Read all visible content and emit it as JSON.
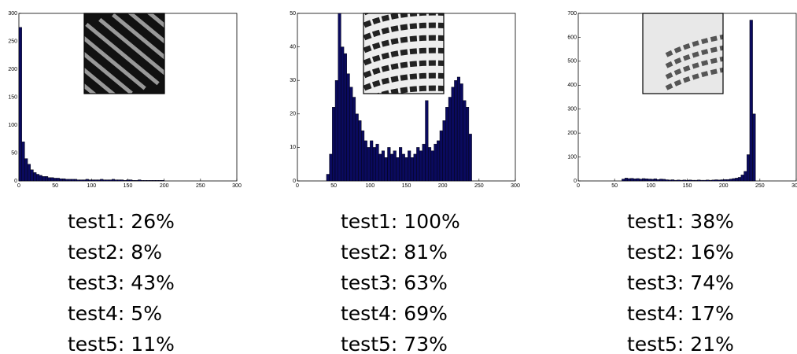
{
  "chart_data": [
    {
      "type": "histogram",
      "color": "#0a0a5e",
      "xlim": [
        0,
        300
      ],
      "ylim": [
        0,
        300
      ],
      "xticks": [
        0,
        50,
        100,
        150,
        200,
        250,
        300
      ],
      "yticks": [
        0,
        50,
        100,
        150,
        200,
        250,
        300
      ],
      "bins": [
        0,
        4,
        8,
        12,
        16,
        20,
        24,
        28,
        32,
        36,
        40,
        44,
        48,
        52,
        56,
        60,
        64,
        68,
        72,
        76,
        80,
        84,
        88,
        92,
        96,
        100,
        104,
        108,
        112,
        116,
        120,
        124,
        128,
        132,
        136,
        140,
        144,
        148,
        152,
        156,
        160,
        164,
        168,
        172,
        176,
        180,
        184,
        188,
        192,
        196,
        200
      ],
      "values": [
        275,
        70,
        40,
        30,
        20,
        15,
        12,
        10,
        8,
        8,
        6,
        6,
        5,
        5,
        4,
        4,
        3,
        3,
        3,
        3,
        2,
        2,
        2,
        3,
        2,
        2,
        2,
        2,
        3,
        2,
        2,
        2,
        3,
        2,
        2,
        2,
        1,
        2,
        2,
        1,
        1,
        2,
        1,
        1,
        1,
        1,
        1,
        1,
        1,
        1
      ],
      "annotations": [
        "test1: 26%",
        "test2: 8%",
        "test3: 43%",
        "test4: 5%",
        "test5: 11%"
      ]
    },
    {
      "type": "histogram",
      "color": "#0a0a5e",
      "xlim": [
        0,
        300
      ],
      "ylim": [
        0,
        50
      ],
      "xticks": [
        0,
        50,
        100,
        150,
        200,
        250,
        300
      ],
      "yticks": [
        0,
        10,
        20,
        30,
        40,
        50
      ],
      "bins": [
        40,
        44,
        48,
        52,
        56,
        60,
        64,
        68,
        72,
        76,
        80,
        84,
        88,
        92,
        96,
        100,
        104,
        108,
        112,
        116,
        120,
        124,
        128,
        132,
        136,
        140,
        144,
        148,
        152,
        156,
        160,
        164,
        168,
        172,
        176,
        180,
        184,
        188,
        192,
        196,
        200,
        204,
        208,
        212,
        216,
        220,
        224,
        228,
        232,
        236,
        240
      ],
      "values": [
        2,
        8,
        22,
        30,
        50,
        40,
        38,
        32,
        28,
        25,
        20,
        18,
        15,
        12,
        10,
        12,
        10,
        11,
        8,
        9,
        7,
        10,
        8,
        9,
        7,
        10,
        8,
        7,
        9,
        7,
        8,
        10,
        9,
        11,
        24,
        10,
        9,
        11,
        12,
        15,
        18,
        22,
        25,
        28,
        30,
        31,
        29,
        24,
        22,
        14
      ],
      "annotations": [
        "test1: 100%",
        "test2: 81%",
        "test3: 63%",
        "test4: 69%",
        "test5: 73%"
      ]
    },
    {
      "type": "histogram",
      "color": "#0a0a5e",
      "xlim": [
        0,
        300
      ],
      "ylim": [
        0,
        700
      ],
      "xticks": [
        0,
        50,
        100,
        150,
        200,
        250,
        300
      ],
      "yticks": [
        0,
        100,
        200,
        300,
        400,
        500,
        600,
        700
      ],
      "bins": [
        60,
        64,
        68,
        72,
        76,
        80,
        84,
        88,
        92,
        96,
        100,
        104,
        108,
        112,
        116,
        120,
        124,
        128,
        132,
        136,
        140,
        144,
        148,
        152,
        156,
        160,
        164,
        168,
        172,
        176,
        180,
        184,
        188,
        192,
        196,
        200,
        204,
        208,
        212,
        216,
        220,
        224,
        228,
        232,
        236,
        240,
        244
      ],
      "values": [
        8,
        12,
        10,
        11,
        9,
        10,
        8,
        10,
        9,
        8,
        7,
        9,
        6,
        8,
        7,
        5,
        4,
        5,
        3,
        4,
        3,
        4,
        3,
        4,
        3,
        3,
        4,
        3,
        3,
        4,
        3,
        4,
        5,
        4,
        5,
        6,
        6,
        8,
        10,
        12,
        15,
        25,
        40,
        110,
        672,
        280
      ],
      "annotations": [
        "test1: 38%",
        "test2: 16%",
        "test3: 74%",
        "test4: 17%",
        "test5: 21%"
      ]
    }
  ]
}
